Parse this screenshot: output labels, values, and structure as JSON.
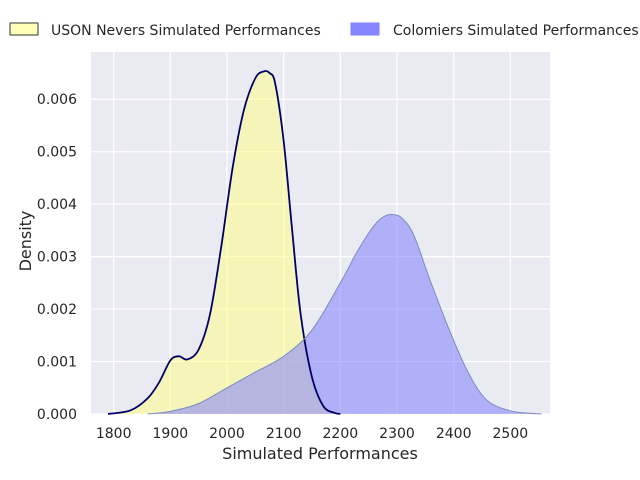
{
  "chart_data": {
    "type": "area",
    "xlabel": "Simulated Performances",
    "ylabel": "Density",
    "xlim": [
      1760,
      2570
    ],
    "ylim": [
      0,
      0.0069
    ],
    "grid": true,
    "legend_placement": "top",
    "x_ticks": [
      "1800",
      "1900",
      "2000",
      "2100",
      "2200",
      "2300",
      "2400",
      "2500"
    ],
    "y_ticks": [
      "0.000",
      "0.001",
      "0.002",
      "0.003",
      "0.004",
      "0.005",
      "0.006"
    ],
    "x_tick_values": [
      1800,
      1900,
      2000,
      2100,
      2200,
      2300,
      2400,
      2500
    ],
    "y_tick_values": [
      0,
      0.001,
      0.002,
      0.003,
      0.004,
      0.005,
      0.006
    ],
    "series": [
      {
        "name": "USON Nevers Simulated Performances",
        "fill": "#ffff80",
        "line": "#000066",
        "x": [
          1790,
          1830,
          1860,
          1880,
          1900,
          1915,
          1930,
          1950,
          1970,
          1990,
          2010,
          2030,
          2050,
          2065,
          2075,
          2085,
          2100,
          2115,
          2130,
          2150,
          2170,
          2190,
          2200
        ],
        "y": [
          0,
          7e-05,
          0.0003,
          0.0006,
          0.00102,
          0.0011,
          0.00104,
          0.00123,
          0.0019,
          0.0032,
          0.0047,
          0.0058,
          0.0064,
          0.00653,
          0.0065,
          0.0063,
          0.0052,
          0.0035,
          0.0019,
          0.0007,
          0.00015,
          2e-05,
          0
        ]
      },
      {
        "name": "Colomiers Simulated Performances",
        "fill": "#8080ff",
        "line": "#7a8cbf",
        "x": [
          1860,
          1900,
          1950,
          2000,
          2050,
          2100,
          2150,
          2200,
          2230,
          2260,
          2280,
          2295,
          2310,
          2330,
          2360,
          2400,
          2430,
          2460,
          2500,
          2540,
          2555
        ],
        "y": [
          0,
          5e-05,
          0.0002,
          0.0005,
          0.0008,
          0.0011,
          0.0016,
          0.0025,
          0.0031,
          0.0036,
          0.00378,
          0.0038,
          0.00372,
          0.0034,
          0.0025,
          0.0014,
          0.0007,
          0.00025,
          6e-05,
          1e-05,
          0
        ]
      }
    ]
  }
}
